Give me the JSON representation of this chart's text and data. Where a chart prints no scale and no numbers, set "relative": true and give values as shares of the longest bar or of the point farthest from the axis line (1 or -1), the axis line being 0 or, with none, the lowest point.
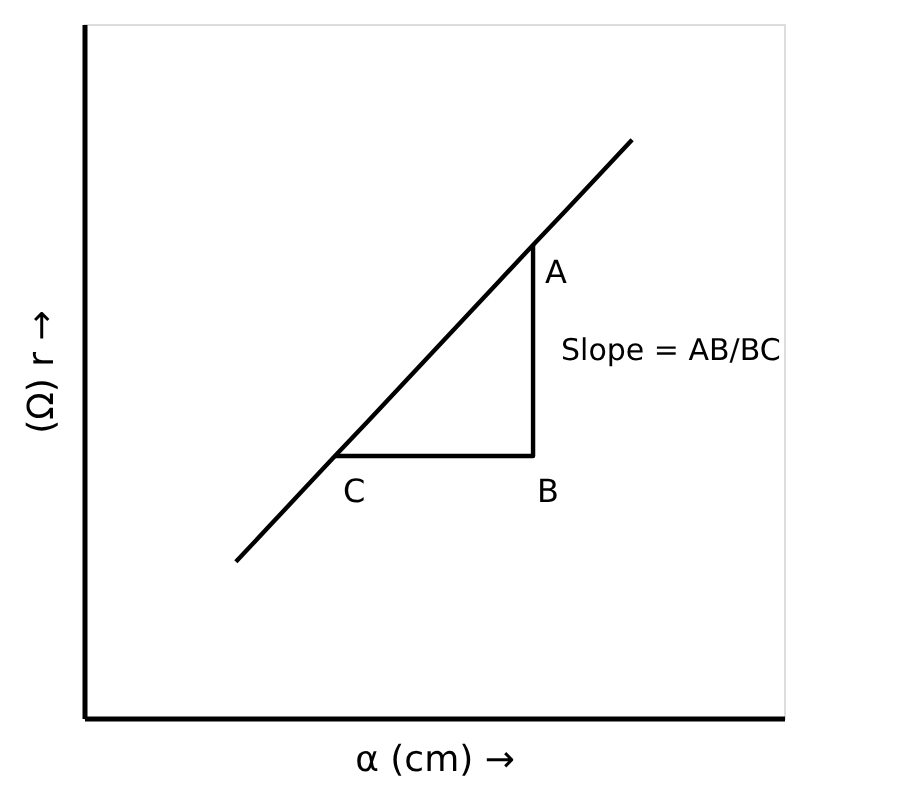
{
  "chart_data": {
    "type": "line",
    "relative": true,
    "marker": "none",
    "line_style": "solid",
    "xlabel": "α (cm) →",
    "ylabel": "(Ω) r →",
    "categories": [
      null,
      null,
      null,
      null,
      null,
      null,
      null,
      null,
      null,
      null,
      null,
      null,
      null,
      null,
      null,
      null,
      null,
      null,
      null,
      null,
      null
    ],
    "series": [
      {
        "color": "#000000",
        "values": [
          null,
          null,
          null,
          null,
          0.27,
          0.331,
          0.392,
          0.453,
          0.513,
          0.574,
          0.635,
          0.696,
          0.757,
          0.818,
          0.878,
          0.939,
          1.0,
          null,
          null,
          null,
          null
        ]
      },
      {
        "type": "step",
        "color": "#000000",
        "values": [
          null,
          null,
          null,
          null,
          null,
          null,
          null,
          0.453,
          0.453,
          0.453,
          0.453,
          0.453,
          0.453,
          0.818,
          null,
          null,
          null,
          null,
          null,
          null,
          null
        ]
      }
    ],
    "annotations": [
      "A",
      "B",
      "C",
      "Slope = AB/BC"
    ]
  }
}
